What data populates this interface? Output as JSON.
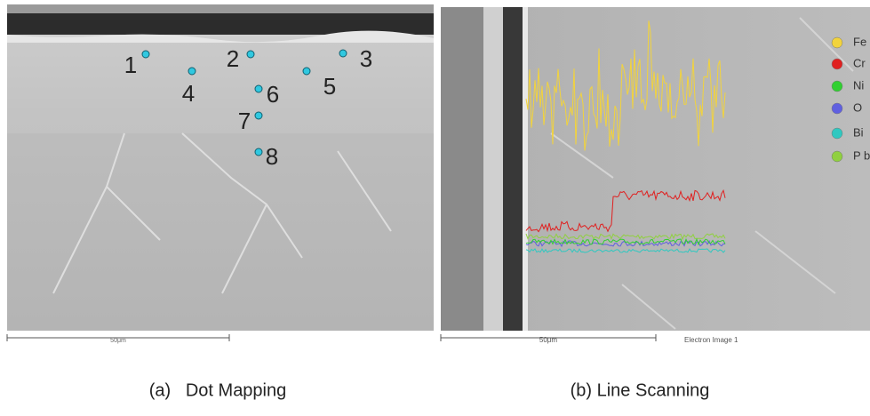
{
  "panels": [
    {
      "caption": "(a)   Dot Mapping",
      "points": [
        "1",
        "2",
        "3",
        "4",
        "5",
        "6",
        "7",
        "8"
      ],
      "scale_bar": "50μm"
    },
    {
      "caption": "(b) Line Scanning",
      "scale_bar": "50μm",
      "image_label": "Electron Image 1",
      "legend": [
        {
          "label": "Fe",
          "color": "#f2d33c"
        },
        {
          "label": "Cr",
          "color": "#e02020"
        },
        {
          "label": "Ni",
          "color": "#30d030"
        },
        {
          "label": "O",
          "color": "#6060e0"
        },
        {
          "label": "Bi",
          "color": "#30c8c0"
        },
        {
          "label": "P b",
          "color": "#90d040"
        }
      ]
    }
  ]
}
